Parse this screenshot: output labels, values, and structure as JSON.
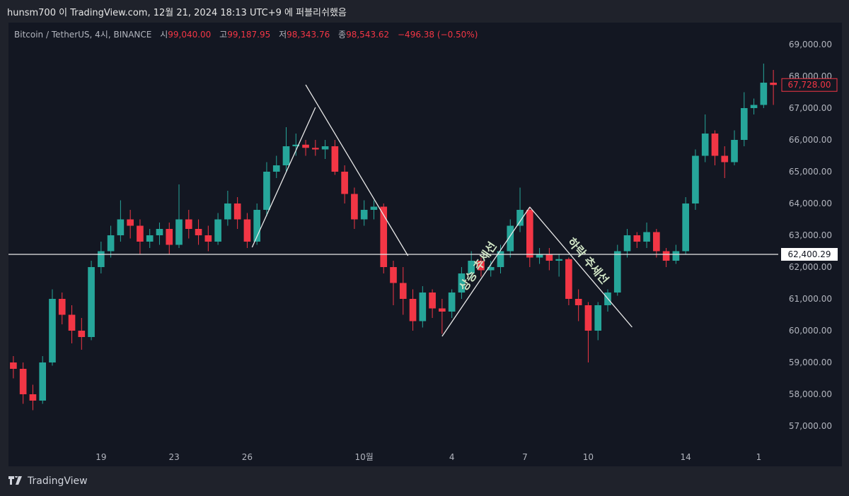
{
  "publication": "hunsm700 이 TradingView.com, 12월 21, 2024 18:13 UTC+9 에 퍼블리쉬했음",
  "legend": {
    "symbol": "Bitcoin / TetherUS, 4시, BINANCE",
    "open_label": "시",
    "open": "99,040.00",
    "high_label": "고",
    "high": "99,187.95",
    "low_label": "저",
    "low": "98,343.76",
    "close_label": "종",
    "close": "98,543.62",
    "change": "−496.38 (−0.50%)"
  },
  "footer": {
    "brand": "TradingView"
  },
  "colors": {
    "up": "#26a69a",
    "down": "#f23645",
    "background": "#131722",
    "drawing": "#e8e8e8",
    "label_text": "#cfe3c4"
  },
  "chart_data": {
    "type": "candlestick",
    "ylim": [
      56500,
      69500
    ],
    "y_ticks": [
      "57,000.00",
      "58,000.00",
      "59,000.00",
      "60,000.00",
      "61,000.00",
      "62,000.00",
      "63,000.00",
      "64,000.00",
      "65,000.00",
      "66,000.00",
      "67,000.00",
      "68,000.00",
      "69,000.00"
    ],
    "y_tick_values": [
      57000,
      58000,
      59000,
      60000,
      61000,
      62000,
      63000,
      64000,
      65000,
      66000,
      67000,
      68000,
      69000
    ],
    "x_ticks": [
      {
        "label": "19",
        "bar": 9
      },
      {
        "label": "23",
        "bar": 16.5
      },
      {
        "label": "26",
        "bar": 24
      },
      {
        "label": "10월",
        "bar": 36
      },
      {
        "label": "4",
        "bar": 45
      },
      {
        "label": "7",
        "bar": 52.5
      },
      {
        "label": "10",
        "bar": 59
      },
      {
        "label": "14",
        "bar": 69
      },
      {
        "label": "1",
        "bar": 76.5
      }
    ],
    "last_price": {
      "value": 67728,
      "label": "67,728.00"
    },
    "horizontal_line": {
      "value": 62400.29,
      "label": "62,400.29"
    },
    "trendlines": [
      {
        "from": [
          24.5,
          62622
        ],
        "to": [
          31,
          67022
        ]
      },
      {
        "from": [
          30,
          67733
        ],
        "to": [
          40.5,
          62356
        ]
      },
      {
        "from": [
          44,
          59822
        ],
        "to": [
          53,
          63889
        ],
        "label": "상승 추세선"
      },
      {
        "from": [
          53,
          63889
        ],
        "to": [
          63.5,
          60111
        ],
        "label": "하락 추세선"
      }
    ],
    "candles_ohlc": [
      [
        59000,
        59200,
        58500,
        58800
      ],
      [
        58800,
        59000,
        57700,
        58000
      ],
      [
        58000,
        58300,
        57500,
        57800
      ],
      [
        57800,
        59200,
        57700,
        59000
      ],
      [
        59000,
        61300,
        58900,
        61000
      ],
      [
        61000,
        61200,
        60200,
        60500
      ],
      [
        60500,
        60800,
        59600,
        60000
      ],
      [
        60000,
        60400,
        59400,
        59800
      ],
      [
        59800,
        62200,
        59700,
        62000
      ],
      [
        62000,
        62800,
        61800,
        62500
      ],
      [
        62500,
        63300,
        62300,
        63000
      ],
      [
        63000,
        64100,
        62800,
        63500
      ],
      [
        63500,
        63800,
        62900,
        63300
      ],
      [
        63300,
        63500,
        62400,
        62800
      ],
      [
        62800,
        63200,
        62600,
        63000
      ],
      [
        63000,
        63400,
        62700,
        63200
      ],
      [
        63200,
        63400,
        62400,
        62700
      ],
      [
        62700,
        64600,
        62600,
        63500
      ],
      [
        63500,
        63800,
        62900,
        63200
      ],
      [
        63200,
        63500,
        62700,
        63000
      ],
      [
        63000,
        63300,
        62500,
        62800
      ],
      [
        62800,
        63700,
        62700,
        63500
      ],
      [
        63500,
        64400,
        63300,
        64000
      ],
      [
        64000,
        64200,
        63200,
        63500
      ],
      [
        63500,
        63700,
        62600,
        62800
      ],
      [
        62800,
        64000,
        62700,
        63800
      ],
      [
        63800,
        65300,
        63600,
        65000
      ],
      [
        65000,
        65500,
        64800,
        65200
      ],
      [
        65200,
        66400,
        65000,
        65800
      ],
      [
        65800,
        66200,
        65500,
        65850
      ],
      [
        65850,
        66000,
        65500,
        65750
      ],
      [
        65750,
        66000,
        65500,
        65700
      ],
      [
        65700,
        66000,
        65400,
        65800
      ],
      [
        65800,
        66000,
        64900,
        65000
      ],
      [
        65000,
        65200,
        64000,
        64300
      ],
      [
        64300,
        64500,
        63200,
        63500
      ],
      [
        63500,
        64100,
        63300,
        63800
      ],
      [
        63800,
        64100,
        63500,
        63900
      ],
      [
        63900,
        64000,
        61800,
        62000
      ],
      [
        62000,
        62200,
        60800,
        61500
      ],
      [
        61500,
        62000,
        60500,
        61000
      ],
      [
        61000,
        61300,
        60000,
        60300
      ],
      [
        60300,
        61400,
        60100,
        61200
      ],
      [
        61200,
        61300,
        60400,
        60700
      ],
      [
        60700,
        61000,
        59900,
        60600
      ],
      [
        60600,
        61300,
        60400,
        61200
      ],
      [
        61200,
        62000,
        61000,
        61800
      ],
      [
        61800,
        62500,
        61600,
        62200
      ],
      [
        62200,
        62300,
        61700,
        61900
      ],
      [
        61900,
        62200,
        61700,
        62000
      ],
      [
        62000,
        62700,
        61800,
        62500
      ],
      [
        62500,
        63500,
        62300,
        63300
      ],
      [
        63300,
        64500,
        63100,
        63800
      ],
      [
        63800,
        63900,
        62000,
        62300
      ],
      [
        62300,
        62600,
        62100,
        62400
      ],
      [
        62400,
        62600,
        61900,
        62200
      ],
      [
        62200,
        62400,
        61700,
        62250
      ],
      [
        62250,
        62300,
        60800,
        61000
      ],
      [
        61000,
        61300,
        60300,
        60800
      ],
      [
        60800,
        60900,
        59000,
        60000
      ],
      [
        60000,
        60900,
        59700,
        60800
      ],
      [
        60800,
        61300,
        60600,
        61200
      ],
      [
        61200,
        62700,
        61100,
        62500
      ],
      [
        62500,
        63200,
        62300,
        63000
      ],
      [
        63000,
        63100,
        62600,
        62800
      ],
      [
        62800,
        63400,
        62600,
        63100
      ],
      [
        63100,
        63200,
        62300,
        62500
      ],
      [
        62500,
        62600,
        62000,
        62200
      ],
      [
        62200,
        62700,
        62100,
        62500
      ],
      [
        62500,
        64200,
        62400,
        64000
      ],
      [
        64000,
        65700,
        63800,
        65500
      ],
      [
        65500,
        66800,
        65300,
        66200
      ],
      [
        66200,
        66300,
        65200,
        65500
      ],
      [
        65500,
        65800,
        64800,
        65300
      ],
      [
        65300,
        66300,
        65200,
        66000
      ],
      [
        66000,
        67500,
        65800,
        67000
      ],
      [
        67000,
        67300,
        66800,
        67100
      ],
      [
        67100,
        68400,
        67000,
        67800
      ],
      [
        67800,
        68200,
        67100,
        67728
      ]
    ]
  }
}
